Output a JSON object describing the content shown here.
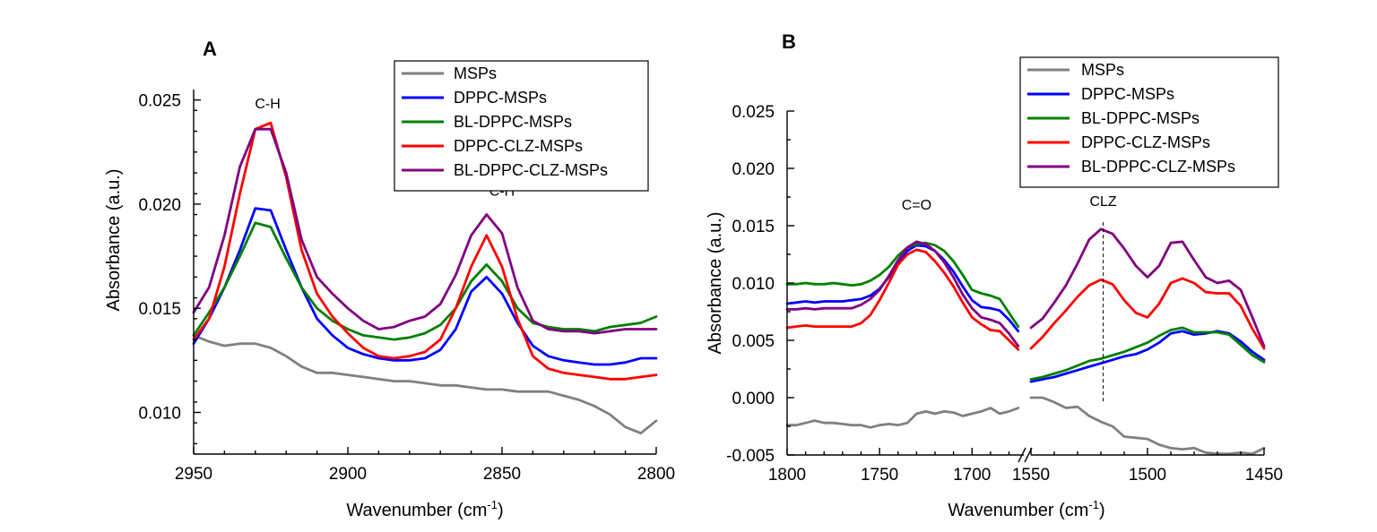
{
  "chart_data": [
    {
      "type": "line",
      "panel_label": "A",
      "xlabel": "Wavenumber (cm",
      "xlabel_sup": "-1",
      "xlabel_end": ")",
      "ylabel": "Absorbance (a.u.)",
      "xlim": [
        2950,
        2800
      ],
      "ylim": [
        0.008,
        0.0255
      ],
      "x_ticks": [
        "2950",
        "2900",
        "2850",
        "2800"
      ],
      "y_ticks": [
        "0.010",
        "0.015",
        "0.020",
        "0.025"
      ],
      "legend_position": "top-right",
      "annotations": [
        {
          "text": "C-H",
          "x": 2926,
          "y": 0.0246
        },
        {
          "text": "C-H",
          "x": 2850,
          "y": 0.0204
        }
      ],
      "series": [
        {
          "name": "MSPs",
          "color": "#808080",
          "x": [
            2950,
            2945,
            2940,
            2935,
            2930,
            2925,
            2920,
            2915,
            2910,
            2905,
            2900,
            2895,
            2890,
            2885,
            2880,
            2875,
            2870,
            2865,
            2860,
            2855,
            2850,
            2845,
            2840,
            2835,
            2830,
            2825,
            2820,
            2815,
            2810,
            2805,
            2800
          ],
          "y": [
            0.0137,
            0.0134,
            0.0132,
            0.0133,
            0.0133,
            0.0131,
            0.0127,
            0.0122,
            0.0119,
            0.0119,
            0.0118,
            0.0117,
            0.0116,
            0.0115,
            0.0115,
            0.0114,
            0.0113,
            0.0113,
            0.0112,
            0.0111,
            0.0111,
            0.011,
            0.011,
            0.011,
            0.0108,
            0.0106,
            0.0103,
            0.0099,
            0.0093,
            0.009,
            0.0096
          ]
        },
        {
          "name": "DPPC-MSPs",
          "color": "#0000ff",
          "x": [
            2950,
            2945,
            2940,
            2935,
            2930,
            2925,
            2920,
            2915,
            2910,
            2905,
            2900,
            2895,
            2890,
            2885,
            2880,
            2875,
            2870,
            2865,
            2860,
            2855,
            2850,
            2845,
            2840,
            2835,
            2830,
            2825,
            2820,
            2815,
            2810,
            2805,
            2800
          ],
          "y": [
            0.0133,
            0.0145,
            0.016,
            0.0178,
            0.0198,
            0.0197,
            0.0178,
            0.016,
            0.0145,
            0.0137,
            0.0131,
            0.0128,
            0.0126,
            0.0125,
            0.0125,
            0.0126,
            0.013,
            0.014,
            0.0158,
            0.0165,
            0.0157,
            0.0143,
            0.0132,
            0.0127,
            0.0125,
            0.0124,
            0.0123,
            0.0123,
            0.0124,
            0.0126,
            0.0126
          ]
        },
        {
          "name": "BL-DPPC-MSPs",
          "color": "#008000",
          "x": [
            2950,
            2945,
            2940,
            2935,
            2930,
            2925,
            2920,
            2915,
            2910,
            2905,
            2900,
            2895,
            2890,
            2885,
            2880,
            2875,
            2870,
            2865,
            2860,
            2855,
            2850,
            2845,
            2840,
            2835,
            2830,
            2825,
            2820,
            2815,
            2810,
            2805,
            2800
          ],
          "y": [
            0.0137,
            0.0148,
            0.016,
            0.0175,
            0.0191,
            0.0189,
            0.0174,
            0.016,
            0.015,
            0.0144,
            0.014,
            0.0137,
            0.0136,
            0.0135,
            0.0136,
            0.0138,
            0.0142,
            0.015,
            0.0163,
            0.0171,
            0.0163,
            0.015,
            0.0143,
            0.0141,
            0.014,
            0.014,
            0.0139,
            0.0141,
            0.0142,
            0.0143,
            0.0146
          ]
        },
        {
          "name": "DPPC-CLZ-MSPs",
          "color": "#ff0000",
          "x": [
            2950,
            2945,
            2940,
            2935,
            2930,
            2925,
            2920,
            2915,
            2910,
            2905,
            2900,
            2895,
            2890,
            2885,
            2880,
            2875,
            2870,
            2865,
            2860,
            2855,
            2850,
            2845,
            2840,
            2835,
            2830,
            2825,
            2820,
            2815,
            2810,
            2805,
            2800
          ],
          "y": [
            0.0135,
            0.0145,
            0.017,
            0.0205,
            0.0236,
            0.0239,
            0.0213,
            0.0178,
            0.0157,
            0.0146,
            0.0138,
            0.0131,
            0.0127,
            0.0126,
            0.0127,
            0.0129,
            0.0135,
            0.015,
            0.017,
            0.0185,
            0.017,
            0.0145,
            0.0127,
            0.0121,
            0.0119,
            0.0118,
            0.0117,
            0.0116,
            0.0116,
            0.0117,
            0.0118
          ]
        },
        {
          "name": "BL-DPPC-CLZ-MSPs",
          "color": "#800080",
          "x": [
            2950,
            2945,
            2940,
            2935,
            2930,
            2925,
            2920,
            2915,
            2910,
            2905,
            2900,
            2895,
            2890,
            2885,
            2880,
            2875,
            2870,
            2865,
            2860,
            2855,
            2850,
            2845,
            2840,
            2835,
            2830,
            2825,
            2820,
            2815,
            2810,
            2805,
            2800
          ],
          "y": [
            0.0148,
            0.016,
            0.0185,
            0.0218,
            0.0236,
            0.0236,
            0.0215,
            0.0183,
            0.0165,
            0.0157,
            0.015,
            0.0144,
            0.014,
            0.0141,
            0.0144,
            0.0146,
            0.0152,
            0.0166,
            0.0185,
            0.0195,
            0.0186,
            0.016,
            0.0144,
            0.014,
            0.0139,
            0.0139,
            0.0138,
            0.0139,
            0.014,
            0.014,
            0.014
          ]
        }
      ]
    },
    {
      "type": "line",
      "panel_label": "B",
      "xlabel": "Wavenumber (cm",
      "xlabel_sup": "-1",
      "xlabel_end": ")",
      "ylabel": "Absorbance (a.u.)",
      "axis_break": {
        "left_segment": [
          1800,
          1675
        ],
        "right_segment": [
          1550,
          1450
        ]
      },
      "ylim": [
        -0.005,
        0.025
      ],
      "x_ticks": [
        "1800",
        "1750",
        "1700",
        "1550",
        "1500",
        "1450"
      ],
      "y_ticks": [
        "-0.005",
        "0.000",
        "0.005",
        "0.010",
        "0.015",
        "0.020",
        "0.025"
      ],
      "legend_position": "top-right",
      "annotations": [
        {
          "text": "C=O",
          "x": 1730,
          "y": 0.0164
        },
        {
          "text": "CLZ",
          "x": 1519,
          "y": 0.0167
        }
      ],
      "reference_line": {
        "x": 1519,
        "style": "dashed"
      },
      "series": [
        {
          "name": "MSPs",
          "color": "#808080",
          "x": [
            1800,
            1795,
            1790,
            1785,
            1780,
            1775,
            1770,
            1765,
            1760,
            1755,
            1750,
            1745,
            1740,
            1735,
            1730,
            1725,
            1720,
            1715,
            1710,
            1705,
            1700,
            1695,
            1690,
            1685,
            1680,
            1675,
            1550,
            1545,
            1540,
            1535,
            1530,
            1525,
            1520,
            1515,
            1510,
            1505,
            1500,
            1495,
            1490,
            1485,
            1480,
            1475,
            1470,
            1465,
            1460,
            1455,
            1450
          ],
          "y": [
            -0.0024,
            -0.0024,
            -0.0022,
            -0.002,
            -0.0022,
            -0.0022,
            -0.0023,
            -0.0024,
            -0.0024,
            -0.0026,
            -0.0024,
            -0.0023,
            -0.0024,
            -0.0022,
            -0.0014,
            -0.0012,
            -0.0014,
            -0.0012,
            -0.0013,
            -0.0016,
            -0.0014,
            -0.0012,
            -0.0009,
            -0.0014,
            -0.0012,
            -0.0009,
            0.0,
            0.0,
            -0.0004,
            -0.0009,
            -0.0008,
            -0.0016,
            -0.0021,
            -0.0025,
            -0.0034,
            -0.0035,
            -0.0036,
            -0.0041,
            -0.0044,
            -0.0045,
            -0.0044,
            -0.0048,
            -0.0049,
            -0.0049,
            -0.0048,
            -0.0049,
            -0.0044
          ]
        },
        {
          "name": "DPPC-MSPs",
          "color": "#0000ff",
          "x": [
            1800,
            1795,
            1790,
            1785,
            1780,
            1775,
            1770,
            1765,
            1760,
            1755,
            1750,
            1745,
            1740,
            1735,
            1730,
            1725,
            1720,
            1715,
            1710,
            1705,
            1700,
            1695,
            1690,
            1685,
            1680,
            1675,
            1550,
            1545,
            1540,
            1535,
            1530,
            1525,
            1520,
            1515,
            1510,
            1505,
            1500,
            1495,
            1490,
            1485,
            1480,
            1475,
            1470,
            1465,
            1460,
            1455,
            1450
          ],
          "y": [
            0.0082,
            0.0083,
            0.0084,
            0.0083,
            0.0084,
            0.0084,
            0.0084,
            0.0085,
            0.0086,
            0.0089,
            0.0095,
            0.0105,
            0.0118,
            0.0128,
            0.0133,
            0.0132,
            0.0128,
            0.012,
            0.011,
            0.0097,
            0.0085,
            0.0079,
            0.0078,
            0.0076,
            0.0068,
            0.0058,
            0.0014,
            0.0016,
            0.0018,
            0.0021,
            0.0024,
            0.0027,
            0.003,
            0.0033,
            0.0036,
            0.0038,
            0.0042,
            0.0048,
            0.0056,
            0.0058,
            0.0055,
            0.0056,
            0.0058,
            0.0056,
            0.0049,
            0.004,
            0.0033
          ]
        },
        {
          "name": "BL-DPPC-MSPs",
          "color": "#008000",
          "x": [
            1800,
            1795,
            1790,
            1785,
            1780,
            1775,
            1770,
            1765,
            1760,
            1755,
            1750,
            1745,
            1740,
            1735,
            1730,
            1725,
            1720,
            1715,
            1710,
            1705,
            1700,
            1695,
            1690,
            1685,
            1680,
            1675,
            1550,
            1545,
            1540,
            1535,
            1530,
            1525,
            1520,
            1515,
            1510,
            1505,
            1500,
            1495,
            1490,
            1485,
            1480,
            1475,
            1470,
            1465,
            1460,
            1455,
            1450
          ],
          "y": [
            0.0099,
            0.0099,
            0.01,
            0.0099,
            0.0099,
            0.01,
            0.0099,
            0.0098,
            0.0099,
            0.0102,
            0.0107,
            0.0114,
            0.0124,
            0.0131,
            0.0134,
            0.0135,
            0.0133,
            0.0128,
            0.0119,
            0.0107,
            0.0094,
            0.0091,
            0.0089,
            0.0086,
            0.0074,
            0.0062,
            0.0016,
            0.0018,
            0.0021,
            0.0024,
            0.0028,
            0.0032,
            0.0034,
            0.0037,
            0.004,
            0.0044,
            0.0048,
            0.0054,
            0.0059,
            0.0061,
            0.0057,
            0.0057,
            0.0057,
            0.0055,
            0.0046,
            0.0037,
            0.0031
          ]
        },
        {
          "name": "DPPC-CLZ-MSPs",
          "color": "#ff0000",
          "x": [
            1800,
            1795,
            1790,
            1785,
            1780,
            1775,
            1770,
            1765,
            1760,
            1755,
            1750,
            1745,
            1740,
            1735,
            1730,
            1725,
            1720,
            1715,
            1710,
            1705,
            1700,
            1695,
            1690,
            1685,
            1680,
            1675,
            1550,
            1545,
            1540,
            1535,
            1530,
            1525,
            1520,
            1515,
            1510,
            1505,
            1500,
            1495,
            1490,
            1485,
            1480,
            1475,
            1470,
            1465,
            1460,
            1455,
            1450
          ],
          "y": [
            0.0061,
            0.0062,
            0.0063,
            0.0062,
            0.0062,
            0.0062,
            0.0062,
            0.0062,
            0.0065,
            0.0072,
            0.0085,
            0.01,
            0.0116,
            0.0125,
            0.0129,
            0.0127,
            0.0119,
            0.0109,
            0.0097,
            0.0083,
            0.007,
            0.0064,
            0.0059,
            0.0058,
            0.005,
            0.0042,
            0.0043,
            0.0053,
            0.0065,
            0.0076,
            0.0088,
            0.0098,
            0.0103,
            0.0099,
            0.0085,
            0.0074,
            0.007,
            0.0082,
            0.01,
            0.0104,
            0.01,
            0.0092,
            0.0091,
            0.0091,
            0.008,
            0.006,
            0.0043
          ]
        },
        {
          "name": "BL-DPPC-CLZ-MSPs",
          "color": "#800080",
          "x": [
            1800,
            1795,
            1790,
            1785,
            1780,
            1775,
            1770,
            1765,
            1760,
            1755,
            1750,
            1745,
            1740,
            1735,
            1730,
            1725,
            1720,
            1715,
            1710,
            1705,
            1700,
            1695,
            1690,
            1685,
            1680,
            1675,
            1550,
            1545,
            1540,
            1535,
            1530,
            1525,
            1520,
            1515,
            1510,
            1505,
            1500,
            1495,
            1490,
            1485,
            1480,
            1475,
            1470,
            1465,
            1460,
            1455,
            1450
          ],
          "y": [
            0.0077,
            0.0077,
            0.0078,
            0.0077,
            0.0078,
            0.0078,
            0.0078,
            0.0078,
            0.0081,
            0.0086,
            0.0094,
            0.0106,
            0.012,
            0.0131,
            0.0136,
            0.0134,
            0.0128,
            0.0118,
            0.0105,
            0.009,
            0.0078,
            0.007,
            0.0068,
            0.0065,
            0.0056,
            0.0045,
            0.0061,
            0.0069,
            0.0083,
            0.0098,
            0.0117,
            0.0138,
            0.0147,
            0.0143,
            0.013,
            0.0115,
            0.0105,
            0.0115,
            0.0135,
            0.0136,
            0.012,
            0.0105,
            0.01,
            0.0102,
            0.0094,
            0.007,
            0.0045
          ]
        }
      ]
    }
  ]
}
